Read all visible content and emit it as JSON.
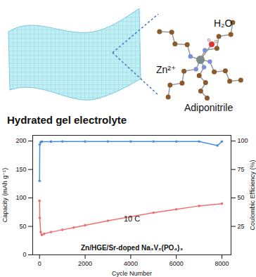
{
  "illustration": {
    "title": "Hydrated gel electrolyte",
    "labels": [
      "H₂O",
      "Zn²⁺",
      "Adiponitrile"
    ]
  },
  "chart_data": {
    "type": "line",
    "xlabel": "Cycle Number",
    "ylabel": "Capacity (mAh g⁻¹)",
    "y2label": "Coulombic Efficiency (%)",
    "xlim": [
      -300,
      8400
    ],
    "xticks": [
      0,
      2000,
      4000,
      6000,
      8000
    ],
    "ylim": [
      0,
      210
    ],
    "yticks": [
      0,
      50,
      100,
      150,
      200
    ],
    "y2lim": [
      0,
      105
    ],
    "y2ticks": [
      25,
      50,
      75,
      100
    ],
    "annotations": [
      "10 C",
      "Zn/HGE/Sr-doped Na₃V₂(PO₄)₃"
    ],
    "series": [
      {
        "name": "Capacity",
        "color": "#f07070",
        "marker": "circle",
        "x": [
          1,
          10,
          50,
          100,
          200,
          500,
          1000,
          1500,
          2000,
          3000,
          4000,
          5000,
          6000,
          7000,
          8000
        ],
        "values": [
          95,
          65,
          40,
          35,
          37,
          40,
          44,
          48,
          52,
          60,
          67,
          74,
          80,
          86,
          90
        ]
      },
      {
        "name": "Coulombic Efficiency",
        "color": "#4a90d9",
        "marker": "circle",
        "axis": "y2",
        "x": [
          1,
          10,
          50,
          100,
          500,
          1000,
          2000,
          3000,
          4000,
          5000,
          6000,
          7000,
          7800,
          8000
        ],
        "values": [
          65,
          97,
          99,
          99.5,
          99.5,
          99.6,
          99.6,
          99.6,
          99.6,
          99.6,
          99.6,
          99.6,
          96,
          99.6
        ]
      }
    ]
  }
}
